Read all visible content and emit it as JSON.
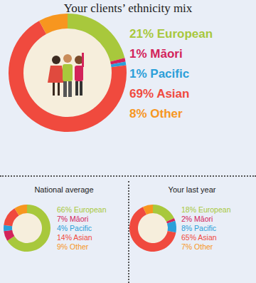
{
  "chart_data": [
    {
      "type": "pie",
      "title": "Your clients’ ethnicity mix",
      "categories": [
        "European",
        "Māori",
        "Pacific",
        "Asian",
        "Other"
      ],
      "values": [
        21,
        1,
        1,
        69,
        8
      ],
      "value_labels": [
        "21%",
        "1%",
        "1%",
        "69%",
        "8%"
      ],
      "colors": [
        "#a8c83c",
        "#d3235a",
        "#2b9fd9",
        "#f04a3e",
        "#f7961f"
      ],
      "legend": "right"
    },
    {
      "type": "pie",
      "title": "National average",
      "categories": [
        "European",
        "Māori",
        "Pacific",
        "Asian",
        "Other"
      ],
      "values": [
        66,
        7,
        4,
        14,
        9
      ],
      "value_labels": [
        "66%",
        "7%",
        "4%",
        "14%",
        "9%"
      ],
      "colors": [
        "#a8c83c",
        "#d3235a",
        "#2b9fd9",
        "#f04a3e",
        "#f7961f"
      ],
      "legend": "right"
    },
    {
      "type": "pie",
      "title": "Your last year",
      "categories": [
        "European",
        "Māori",
        "Pacific",
        "Asian",
        "Other"
      ],
      "values": [
        18,
        2,
        8,
        65,
        7
      ],
      "value_labels": [
        "18%",
        "2%",
        "8%",
        "65%",
        "7%"
      ],
      "colors": [
        "#a8c83c",
        "#d3235a",
        "#2b9fd9",
        "#f04a3e",
        "#f7961f"
      ],
      "legend": "right"
    }
  ]
}
